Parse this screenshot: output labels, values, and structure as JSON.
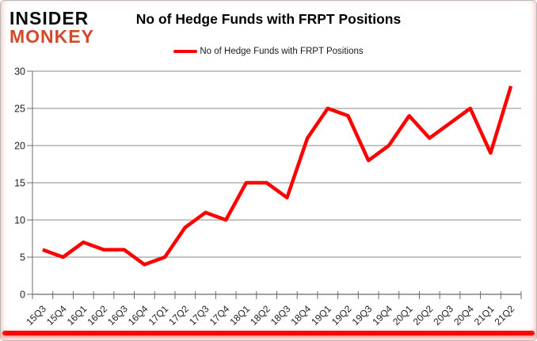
{
  "logo": {
    "line1": "INSIDER",
    "line2": "MONKEY",
    "line1_color": "#0b0b0b",
    "line2_color": "#d2492a"
  },
  "header": {
    "title": "No of Hedge Funds with FRPT Positions"
  },
  "legend": {
    "label": "No of Hedge Funds with FRPT Positions",
    "swatch_color": "#ff0000"
  },
  "chart_data": {
    "type": "line",
    "title": "No of Hedge Funds with FRPT Positions",
    "categories": [
      "15Q3",
      "15Q4",
      "16Q1",
      "16Q2",
      "16Q3",
      "16Q4",
      "17Q1",
      "17Q2",
      "17Q3",
      "17Q4",
      "18Q1",
      "18Q2",
      "18Q3",
      "18Q4",
      "19Q1",
      "19Q2",
      "19Q3",
      "19Q4",
      "20Q1",
      "20Q2",
      "20Q3",
      "20Q4",
      "21Q1",
      "21Q2"
    ],
    "series": [
      {
        "name": "No of Hedge Funds with FRPT Positions",
        "color": "#ff0000",
        "values": [
          6,
          5,
          7,
          6,
          6,
          4,
          5,
          9,
          11,
          10,
          15,
          15,
          13,
          21,
          25,
          24,
          18,
          20,
          24,
          21,
          23,
          25,
          19,
          28
        ]
      }
    ],
    "xlabel": "",
    "ylabel": "",
    "ylim": [
      0,
      30
    ],
    "yticks": [
      0,
      5,
      10,
      15,
      20,
      25,
      30
    ],
    "grid": true,
    "legend_position": "top",
    "gridline_color": "#8a8a8a",
    "axis_color": "#6b6b6b",
    "tick_label_color": "#212121"
  },
  "footer": {
    "accent_bar_color": "#fb0702"
  }
}
